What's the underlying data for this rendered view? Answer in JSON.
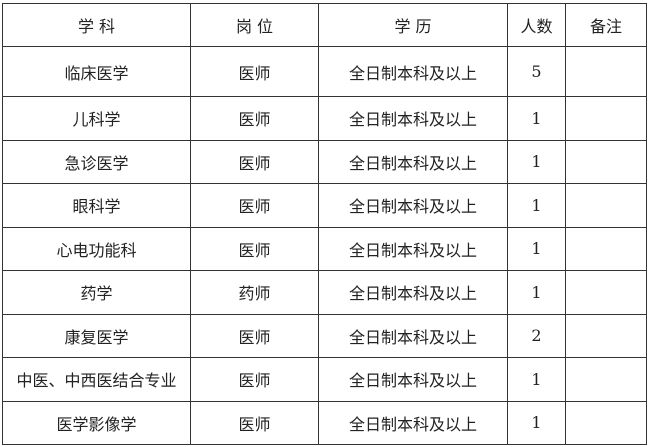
{
  "headers": [
    "学 科",
    "岗 位",
    "学 历",
    "人数",
    "备注"
  ],
  "rows": [
    {
      "subject": "临床医学",
      "post": "医师",
      "education": "全日制本科及以上",
      "count": "5",
      "note": ""
    },
    {
      "subject": "儿科学",
      "post": "医师",
      "education": "全日制本科及以上",
      "count": "1",
      "note": ""
    },
    {
      "subject": "急诊医学",
      "post": "医师",
      "education": "全日制本科及以上",
      "count": "1",
      "note": ""
    },
    {
      "subject": "眼科学",
      "post": "医师",
      "education": "全日制本科及以上",
      "count": "1",
      "note": ""
    },
    {
      "subject": "心电功能科",
      "post": "医师",
      "education": "全日制本科及以上",
      "count": "1",
      "note": ""
    },
    {
      "subject": "药学",
      "post": "药师",
      "education": "全日制本科及以上",
      "count": "1",
      "note": ""
    },
    {
      "subject": "康复医学",
      "post": "医师",
      "education": "全日制本科及以上",
      "count": "2",
      "note": ""
    },
    {
      "subject": "中医、中西医结合专业",
      "post": "医师",
      "education": "全日制本科及以上",
      "count": "1",
      "note": ""
    },
    {
      "subject": "医学影像学",
      "post": "医师",
      "education": "全日制本科及以上",
      "count": "1",
      "note": ""
    }
  ]
}
